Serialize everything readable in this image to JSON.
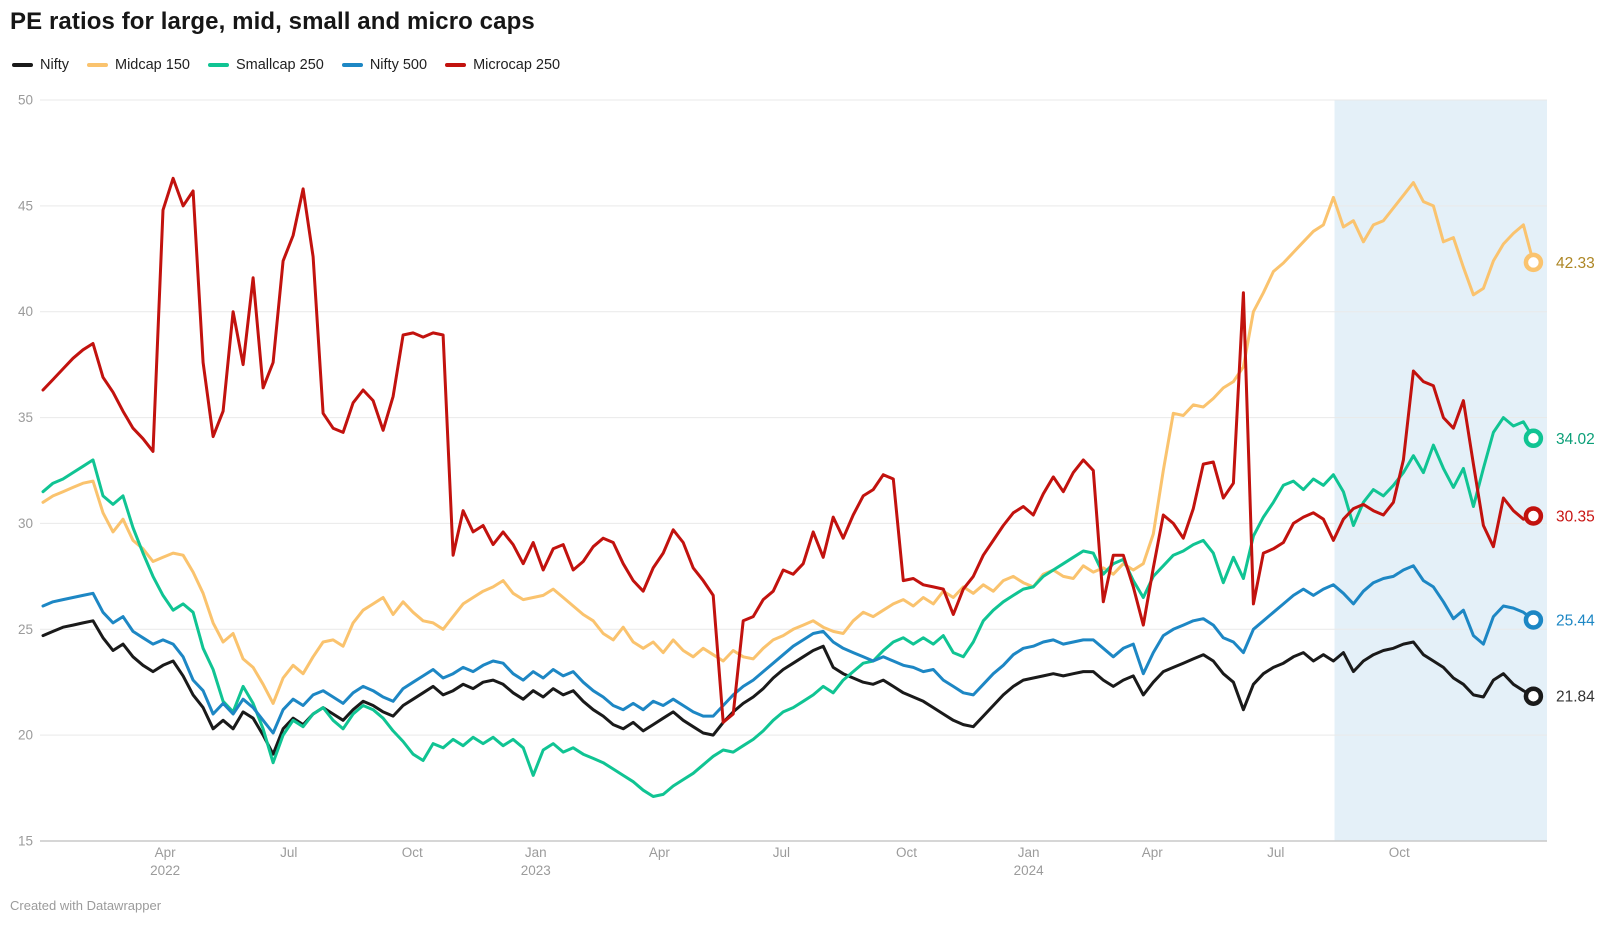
{
  "title": "PE ratios for large, mid, small and micro caps",
  "footer": "Created with Datawrapper",
  "chart_data": {
    "type": "line",
    "title": "PE ratios for large, mid, small and micro caps",
    "xlabel": "",
    "ylabel": "",
    "grid": true,
    "legend_position": "top",
    "y_axis": {
      "min": 15,
      "max": 50,
      "step": 5,
      "ticks": [
        50,
        45,
        40,
        35,
        30,
        25,
        20,
        15
      ]
    },
    "x_axis": {
      "ticks": [
        {
          "label": "Apr",
          "year": "2022",
          "pos": 0.083
        },
        {
          "label": "Jul",
          "year": "",
          "pos": 0.165
        },
        {
          "label": "Oct",
          "year": "",
          "pos": 0.247
        },
        {
          "label": "Jan",
          "year": "2023",
          "pos": 0.329
        },
        {
          "label": "Apr",
          "year": "",
          "pos": 0.411
        },
        {
          "label": "Jul",
          "year": "",
          "pos": 0.492
        },
        {
          "label": "Oct",
          "year": "",
          "pos": 0.575
        },
        {
          "label": "Jan",
          "year": "2024",
          "pos": 0.656
        },
        {
          "label": "Apr",
          "year": "",
          "pos": 0.738
        },
        {
          "label": "Jul",
          "year": "",
          "pos": 0.82
        },
        {
          "label": "Oct",
          "year": "",
          "pos": 0.902
        }
      ]
    },
    "highlight_region": {
      "from": 0.859,
      "to": 1.0,
      "color": "#e4f0f8"
    },
    "data_domain": {
      "start": 0.002,
      "end": 0.991
    },
    "colors": {
      "grid": "#e9e9e9",
      "axis_line": "#c9c9c9",
      "tick_text": "#9b9b9b",
      "marker_fill": "#ffffff"
    },
    "series": [
      {
        "name": "Nifty",
        "color": "#1a1a1a",
        "label_color": "#333333",
        "end_label": "21.84",
        "values": [
          24.7,
          24.9,
          25.1,
          25.2,
          25.3,
          25.4,
          24.6,
          24.0,
          24.3,
          23.7,
          23.3,
          23.0,
          23.3,
          23.5,
          22.8,
          21.9,
          21.3,
          20.3,
          20.7,
          20.3,
          21.1,
          20.8,
          20.0,
          19.1,
          20.3,
          20.8,
          20.5,
          21.0,
          21.3,
          21.0,
          20.7,
          21.2,
          21.6,
          21.4,
          21.1,
          20.9,
          21.4,
          21.7,
          22.0,
          22.3,
          21.9,
          22.1,
          22.4,
          22.2,
          22.5,
          22.6,
          22.4,
          22.0,
          21.7,
          22.1,
          21.8,
          22.2,
          21.9,
          22.1,
          21.6,
          21.2,
          20.9,
          20.5,
          20.3,
          20.6,
          20.2,
          20.5,
          20.8,
          21.1,
          20.7,
          20.4,
          20.1,
          20.0,
          20.6,
          21.1,
          21.5,
          21.8,
          22.2,
          22.7,
          23.1,
          23.4,
          23.7,
          24.0,
          24.2,
          23.2,
          22.9,
          22.7,
          22.5,
          22.4,
          22.6,
          22.3,
          22.0,
          21.8,
          21.6,
          21.3,
          21.0,
          20.7,
          20.5,
          20.4,
          20.9,
          21.4,
          21.9,
          22.3,
          22.6,
          22.7,
          22.8,
          22.9,
          22.8,
          22.9,
          23.0,
          23.0,
          22.6,
          22.3,
          22.6,
          22.8,
          21.9,
          22.5,
          23.0,
          23.2,
          23.4,
          23.6,
          23.8,
          23.5,
          22.9,
          22.5,
          21.2,
          22.4,
          22.9,
          23.2,
          23.4,
          23.7,
          23.9,
          23.5,
          23.8,
          23.5,
          23.9,
          23.0,
          23.5,
          23.8,
          24.0,
          24.1,
          24.3,
          24.4,
          23.8,
          23.5,
          23.2,
          22.7,
          22.4,
          21.9,
          21.8,
          22.6,
          22.9,
          22.4,
          22.1,
          21.84
        ]
      },
      {
        "name": "Midcap 150",
        "color": "#fac36e",
        "label_color": "#ad8624",
        "end_label": "42.33",
        "values": [
          31.0,
          31.3,
          31.5,
          31.7,
          31.9,
          32.0,
          30.5,
          29.6,
          30.2,
          29.2,
          28.8,
          28.2,
          28.4,
          28.6,
          28.5,
          27.7,
          26.7,
          25.3,
          24.4,
          24.8,
          23.6,
          23.2,
          22.4,
          21.5,
          22.7,
          23.3,
          22.9,
          23.7,
          24.4,
          24.5,
          24.2,
          25.3,
          25.9,
          26.2,
          26.5,
          25.7,
          26.3,
          25.8,
          25.4,
          25.3,
          25.0,
          25.6,
          26.2,
          26.5,
          26.8,
          27.0,
          27.3,
          26.7,
          26.4,
          26.5,
          26.6,
          26.9,
          26.5,
          26.1,
          25.7,
          25.4,
          24.8,
          24.5,
          25.1,
          24.4,
          24.1,
          24.4,
          23.9,
          24.5,
          24.0,
          23.7,
          24.1,
          23.8,
          23.5,
          24.0,
          23.7,
          23.6,
          24.1,
          24.5,
          24.7,
          25.0,
          25.2,
          25.4,
          25.1,
          24.9,
          24.8,
          25.4,
          25.8,
          25.6,
          25.9,
          26.2,
          26.4,
          26.1,
          26.5,
          26.2,
          26.8,
          26.5,
          27.0,
          26.7,
          27.1,
          26.8,
          27.3,
          27.5,
          27.2,
          27.0,
          27.6,
          27.8,
          27.5,
          27.4,
          28.0,
          27.7,
          27.9,
          27.6,
          28.1,
          27.8,
          28.1,
          29.5,
          32.5,
          35.2,
          35.1,
          35.6,
          35.5,
          35.9,
          36.4,
          36.7,
          37.4,
          40.0,
          40.9,
          41.9,
          42.3,
          42.8,
          43.3,
          43.8,
          44.1,
          45.4,
          44.0,
          44.3,
          43.3,
          44.1,
          44.3,
          44.9,
          45.5,
          46.1,
          45.2,
          45.0,
          43.3,
          43.5,
          42.1,
          40.8,
          41.1,
          42.4,
          43.2,
          43.7,
          44.1,
          42.33
        ]
      },
      {
        "name": "Smallcap 250",
        "color": "#10c493",
        "label_color": "#0b9f78",
        "end_label": "34.02",
        "values": [
          31.5,
          31.9,
          32.1,
          32.4,
          32.7,
          33.0,
          31.3,
          30.9,
          31.3,
          29.8,
          28.6,
          27.5,
          26.6,
          25.9,
          26.2,
          25.8,
          24.1,
          23.1,
          21.6,
          21.1,
          22.3,
          21.5,
          20.3,
          18.7,
          20.0,
          20.7,
          20.4,
          21.0,
          21.3,
          20.7,
          20.3,
          21.0,
          21.4,
          21.2,
          20.8,
          20.2,
          19.7,
          19.1,
          18.8,
          19.6,
          19.4,
          19.8,
          19.5,
          19.9,
          19.6,
          19.9,
          19.5,
          19.8,
          19.4,
          18.1,
          19.3,
          19.6,
          19.2,
          19.4,
          19.1,
          18.9,
          18.7,
          18.4,
          18.1,
          17.8,
          17.4,
          17.1,
          17.2,
          17.6,
          17.9,
          18.2,
          18.6,
          19.0,
          19.3,
          19.2,
          19.5,
          19.8,
          20.2,
          20.7,
          21.1,
          21.3,
          21.6,
          21.9,
          22.3,
          22.0,
          22.6,
          23.0,
          23.4,
          23.5,
          24.0,
          24.4,
          24.6,
          24.3,
          24.6,
          24.3,
          24.7,
          23.9,
          23.7,
          24.4,
          25.4,
          25.9,
          26.3,
          26.6,
          26.9,
          27.0,
          27.5,
          27.8,
          28.1,
          28.4,
          28.7,
          28.6,
          27.6,
          28.1,
          28.3,
          27.3,
          26.5,
          27.5,
          28.0,
          28.5,
          28.7,
          29.0,
          29.2,
          28.6,
          27.2,
          28.4,
          27.4,
          29.4,
          30.3,
          31.0,
          31.8,
          32.0,
          31.6,
          32.1,
          31.8,
          32.3,
          31.5,
          29.9,
          31.0,
          31.6,
          31.3,
          31.8,
          32.4,
          33.2,
          32.4,
          33.7,
          32.6,
          31.7,
          32.6,
          30.8,
          32.6,
          34.3,
          35.0,
          34.6,
          34.8,
          34.02
        ]
      },
      {
        "name": "Nifty 500",
        "color": "#1d87c4",
        "label_color": "#1d87c4",
        "end_label": "25.44",
        "values": [
          26.1,
          26.3,
          26.4,
          26.5,
          26.6,
          26.7,
          25.8,
          25.3,
          25.6,
          24.9,
          24.6,
          24.3,
          24.5,
          24.3,
          23.7,
          22.6,
          22.1,
          21.0,
          21.5,
          21.0,
          21.7,
          21.3,
          20.7,
          20.1,
          21.2,
          21.7,
          21.4,
          21.9,
          22.1,
          21.8,
          21.5,
          22.0,
          22.3,
          22.1,
          21.8,
          21.6,
          22.2,
          22.5,
          22.8,
          23.1,
          22.7,
          22.9,
          23.2,
          23.0,
          23.3,
          23.5,
          23.4,
          22.9,
          22.6,
          23.0,
          22.7,
          23.1,
          22.8,
          23.0,
          22.5,
          22.1,
          21.8,
          21.4,
          21.2,
          21.5,
          21.2,
          21.6,
          21.4,
          21.7,
          21.4,
          21.1,
          20.9,
          20.9,
          21.4,
          21.9,
          22.3,
          22.6,
          23.0,
          23.4,
          23.8,
          24.2,
          24.5,
          24.8,
          24.9,
          24.4,
          24.1,
          23.9,
          23.7,
          23.5,
          23.7,
          23.5,
          23.3,
          23.2,
          23.0,
          23.1,
          22.6,
          22.3,
          22.0,
          21.9,
          22.4,
          22.9,
          23.3,
          23.8,
          24.1,
          24.2,
          24.4,
          24.5,
          24.3,
          24.4,
          24.5,
          24.5,
          24.1,
          23.7,
          24.1,
          24.3,
          22.9,
          23.9,
          24.7,
          25.0,
          25.2,
          25.4,
          25.5,
          25.2,
          24.6,
          24.4,
          23.9,
          25.0,
          25.4,
          25.8,
          26.2,
          26.6,
          26.9,
          26.6,
          26.9,
          27.1,
          26.7,
          26.2,
          26.8,
          27.2,
          27.4,
          27.5,
          27.8,
          28.0,
          27.3,
          27.0,
          26.3,
          25.5,
          25.9,
          24.7,
          24.3,
          25.6,
          26.1,
          26.0,
          25.8,
          25.44
        ]
      },
      {
        "name": "Microcap 250",
        "color": "#c2120e",
        "label_color": "#c81412",
        "end_label": "30.35",
        "values": [
          36.3,
          36.8,
          37.3,
          37.8,
          38.2,
          38.5,
          36.9,
          36.2,
          35.3,
          34.5,
          34.0,
          33.4,
          44.8,
          46.3,
          45.0,
          45.7,
          37.6,
          34.1,
          35.3,
          40.0,
          37.5,
          41.6,
          36.4,
          37.6,
          42.4,
          43.6,
          45.8,
          42.6,
          35.2,
          34.5,
          34.3,
          35.7,
          36.3,
          35.8,
          34.4,
          36.0,
          38.9,
          39.0,
          38.8,
          39.0,
          38.9,
          28.5,
          30.6,
          29.6,
          29.9,
          29.0,
          29.6,
          29.0,
          28.1,
          29.1,
          27.8,
          28.8,
          29.0,
          27.8,
          28.2,
          28.9,
          29.3,
          29.1,
          28.1,
          27.3,
          26.8,
          27.9,
          28.6,
          29.7,
          29.1,
          27.9,
          27.3,
          26.6,
          20.6,
          21.0,
          25.4,
          25.6,
          26.4,
          26.8,
          27.8,
          27.6,
          28.1,
          29.6,
          28.4,
          30.3,
          29.3,
          30.4,
          31.3,
          31.6,
          32.3,
          32.1,
          27.3,
          27.4,
          27.1,
          27.0,
          26.9,
          25.7,
          26.9,
          27.5,
          28.5,
          29.2,
          29.9,
          30.5,
          30.8,
          30.4,
          31.4,
          32.2,
          31.5,
          32.4,
          33.0,
          32.5,
          26.3,
          28.5,
          28.5,
          27.0,
          25.2,
          27.9,
          30.4,
          30.0,
          29.3,
          30.7,
          32.8,
          32.9,
          31.2,
          31.9,
          40.9,
          26.2,
          28.6,
          28.8,
          29.1,
          30.0,
          30.3,
          30.5,
          30.2,
          29.2,
          30.2,
          30.7,
          30.9,
          30.6,
          30.4,
          31.0,
          33.0,
          37.2,
          36.7,
          36.5,
          35.0,
          34.5,
          35.8,
          32.8,
          29.9,
          28.9,
          31.2,
          30.6,
          30.2,
          30.35
        ]
      }
    ]
  }
}
